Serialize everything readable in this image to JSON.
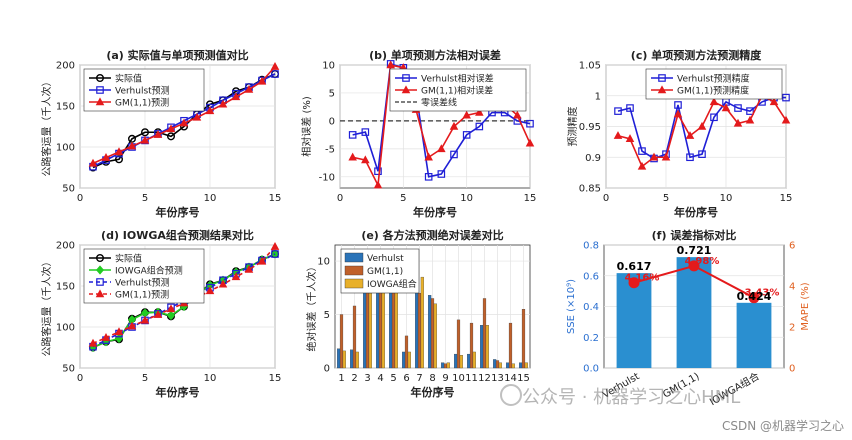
{
  "chart_data": [
    {
      "id": "a",
      "type": "line",
      "title": "(a) 实际值与单项预测值对比",
      "xlabel": "年份序号",
      "ylabel": "公路客运量（千人次）",
      "xlim": [
        0,
        15
      ],
      "ylim": [
        50,
        200
      ],
      "xticks": [
        0,
        5,
        10,
        15
      ],
      "yticks": [
        50,
        100,
        150,
        200
      ],
      "x": [
        1,
        2,
        3,
        4,
        5,
        6,
        7,
        8,
        9,
        10,
        11,
        12,
        13,
        14,
        15
      ],
      "series": [
        {
          "name": "实际值",
          "color": "#000000",
          "marker": "circle",
          "dash": "",
          "values": [
            75,
            82,
            85,
            110,
            118,
            118,
            113,
            125,
            140,
            152,
            157,
            168,
            173,
            182,
            189
          ]
        },
        {
          "name": "Verhulst预测",
          "color": "#1f1fd6",
          "marker": "square",
          "dash": "",
          "values": [
            76,
            84,
            92,
            100,
            108,
            116,
            124,
            132,
            140,
            148,
            157,
            165,
            173,
            181,
            189
          ]
        },
        {
          "name": "GM(1,1)预测",
          "color": "#e41a1c",
          "marker": "triangle",
          "dash": "",
          "values": [
            80,
            87,
            94,
            101,
            108,
            115,
            122,
            129,
            136,
            144,
            152,
            161,
            170,
            180,
            198
          ]
        }
      ],
      "legend": [
        "实际值",
        "Verhulst预测",
        "GM(1,1)预测"
      ],
      "legend_loc": "top-left"
    },
    {
      "id": "b",
      "type": "line",
      "title": "(b) 单项预测方法相对误差",
      "xlabel": "年份序号",
      "ylabel": "相对误差 (%)",
      "xlim": [
        0,
        15
      ],
      "ylim": [
        -12,
        10
      ],
      "xticks": [
        0,
        5,
        10,
        15
      ],
      "yticks": [
        -10,
        -5,
        0,
        5,
        10
      ],
      "x": [
        1,
        2,
        3,
        4,
        5,
        6,
        7,
        8,
        9,
        10,
        11,
        12,
        13,
        14,
        15
      ],
      "series": [
        {
          "name": "Verhulst相对误差",
          "color": "#1f1fd6",
          "marker": "square",
          "dash": "",
          "values": [
            -2.5,
            -2,
            -9,
            10.2,
            9.5,
            5,
            -10,
            -9.5,
            -6,
            -2.5,
            -1,
            1.5,
            1.5,
            0,
            -0.5
          ]
        },
        {
          "name": "GM(1,1)相对误差",
          "color": "#e41a1c",
          "marker": "triangle",
          "dash": "",
          "values": [
            -6.5,
            -7,
            -11.5,
            10,
            9.5,
            2,
            -6.5,
            -5,
            -1,
            1,
            1.5,
            4,
            3,
            1,
            -4
          ]
        }
      ],
      "reference_line": {
        "name": "零误差线",
        "value": 0
      },
      "legend": [
        "Verhulst相对误差",
        "GM(1,1)相对误差",
        "零误差线"
      ],
      "legend_loc": "top-right"
    },
    {
      "id": "c",
      "type": "line",
      "title": "(c) 单项预测方法预测精度",
      "xlabel": "年份序号",
      "ylabel": "预测精度",
      "xlim": [
        0,
        15
      ],
      "ylim": [
        0.85,
        1.05
      ],
      "xticks": [
        0,
        5,
        10,
        15
      ],
      "yticks": [
        0.85,
        0.9,
        0.95,
        1,
        1.05
      ],
      "x": [
        1,
        2,
        3,
        4,
        5,
        6,
        7,
        8,
        9,
        10,
        11,
        12,
        13,
        14,
        15
      ],
      "series": [
        {
          "name": "Verhulst预测精度",
          "color": "#1f1fd6",
          "marker": "square",
          "dash": "",
          "values": [
            0.975,
            0.98,
            0.91,
            0.898,
            0.905,
            0.985,
            0.9,
            0.905,
            0.965,
            0.99,
            0.98,
            0.975,
            0.99,
            0.997,
            0.997
          ]
        },
        {
          "name": "GM(1,1)预测精度",
          "color": "#e41a1c",
          "marker": "triangle",
          "dash": "",
          "values": [
            0.935,
            0.93,
            0.885,
            0.9,
            0.9,
            0.97,
            0.935,
            0.95,
            0.99,
            0.98,
            0.955,
            0.96,
            1.0,
            0.99,
            0.96
          ]
        }
      ],
      "legend": [
        "Verhulst预测精度",
        "GM(1,1)预测精度"
      ],
      "legend_loc": "top-right"
    },
    {
      "id": "d",
      "type": "line",
      "title": "(d) IOWGA组合预测结果对比",
      "xlabel": "年份序号",
      "ylabel": "公路客运量（千人次）",
      "xlim": [
        0,
        15
      ],
      "ylim": [
        50,
        200
      ],
      "xticks": [
        0,
        5,
        10,
        15
      ],
      "yticks": [
        50,
        100,
        150,
        200
      ],
      "x": [
        1,
        2,
        3,
        4,
        5,
        6,
        7,
        8,
        9,
        10,
        11,
        12,
        13,
        14,
        15
      ],
      "series": [
        {
          "name": "实际值",
          "color": "#000000",
          "marker": "circle",
          "dash": "",
          "values": [
            75,
            82,
            85,
            110,
            118,
            118,
            113,
            125,
            140,
            152,
            157,
            168,
            173,
            182,
            189
          ]
        },
        {
          "name": "IOWGA组合预测",
          "color": "#22cc22",
          "marker": "diamond",
          "dash": "",
          "values": [
            75,
            82,
            86,
            109,
            117,
            118,
            114,
            125,
            140,
            151,
            157,
            167,
            173,
            182,
            189
          ]
        },
        {
          "name": "Verhulst预测",
          "color": "#1f1fd6",
          "marker": "square",
          "dash": "4,3",
          "values": [
            76,
            84,
            92,
            100,
            108,
            116,
            124,
            132,
            140,
            148,
            157,
            165,
            173,
            181,
            189
          ]
        },
        {
          "name": "GM(1,1)预测",
          "color": "#e41a1c",
          "marker": "triangle",
          "dash": "4,3",
          "values": [
            80,
            87,
            94,
            101,
            108,
            115,
            122,
            129,
            136,
            144,
            152,
            161,
            170,
            180,
            198
          ]
        }
      ],
      "legend": [
        "实际值",
        "IOWGA组合预测",
        "Verhulst预测",
        "GM(1,1)预测"
      ],
      "legend_loc": "top-left"
    },
    {
      "id": "e",
      "type": "bar",
      "title": "(e) 各方法预测绝对误差对比",
      "xlabel": "年份序号",
      "ylabel": "绝对误差（千人次）",
      "ylim": [
        0,
        11.5
      ],
      "yticks": [
        0,
        5,
        10
      ],
      "categories": [
        "1",
        "2",
        "3",
        "4",
        "5",
        "6",
        "7",
        "8",
        "9",
        "10",
        "11",
        "12",
        "13",
        "14",
        "15"
      ],
      "series": [
        {
          "name": "Verhulst",
          "color": "#2a73b8",
          "values": [
            1.8,
            1.7,
            7.5,
            10,
            9.8,
            1.5,
            11,
            6.8,
            0.5,
            1.3,
            1.3,
            4,
            0.8,
            0.5,
            0.5
          ]
        },
        {
          "name": "GM(1,1)",
          "color": "#c0602a",
          "values": [
            5,
            5.8,
            10,
            9.2,
            10,
            3,
            7,
            6.5,
            0.4,
            4.5,
            4.2,
            6.5,
            0.7,
            4.2,
            5.5
          ]
        },
        {
          "name": "IOWGA组合",
          "color": "#e8b02a",
          "values": [
            1.6,
            1.5,
            7,
            8.5,
            7.5,
            1.5,
            8.5,
            6,
            0.5,
            1.2,
            1.5,
            4,
            0.5,
            0.4,
            0.5
          ]
        }
      ],
      "legend": [
        "Verhulst",
        "GM(1,1)",
        "IOWGA组合"
      ],
      "legend_loc": "top-left"
    },
    {
      "id": "f",
      "type": "bar",
      "title": "(f) 误差指标对比",
      "ylabel_left": "SSE (×10⁹)",
      "ylabel_right": "MAPE (%)",
      "ylim_left": [
        0,
        0.8
      ],
      "yticks_left": [
        0,
        0.2,
        0.4,
        0.6,
        0.8
      ],
      "ylim_right": [
        0,
        6
      ],
      "yticks_right": [
        0,
        2,
        4,
        6
      ],
      "categories": [
        "Verhulst",
        "GM(1,1)",
        "IOWGA组合"
      ],
      "bars": {
        "name": "SSE",
        "color": "#2a8fd0",
        "values": [
          0.617,
          0.721,
          0.424
        ],
        "labels": [
          "0.617",
          "0.721",
          "0.424"
        ]
      },
      "line": {
        "name": "MAPE",
        "color": "#e41a1c",
        "values": [
          4.16,
          4.98,
          3.43
        ],
        "labels": [
          "4.16%",
          "4.98%",
          "3.43%"
        ]
      }
    }
  ],
  "watermark": {
    "primary": "公众号 · 机器学习之心HML",
    "footer": "CSDN @机器学习之心"
  }
}
